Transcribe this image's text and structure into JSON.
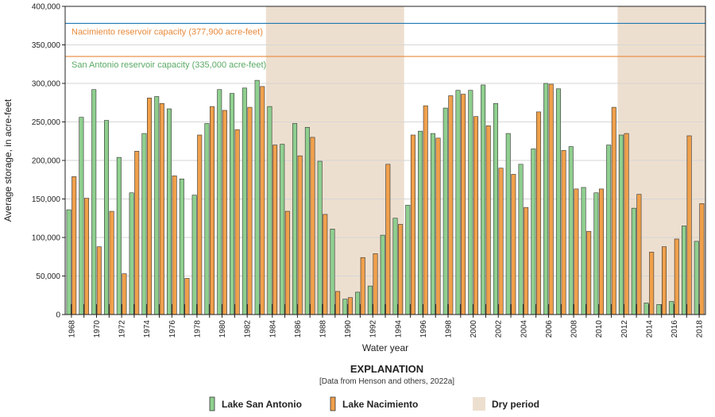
{
  "chart_data": {
    "type": "bar",
    "title": "",
    "xlabel": "Water year",
    "ylabel": "Average storage, in acre-feet",
    "ylim": [
      0,
      400000
    ],
    "y_ticks": [
      0,
      50000,
      100000,
      150000,
      200000,
      250000,
      300000,
      350000,
      400000
    ],
    "y_tick_labels": [
      "0",
      "50,000",
      "100,000",
      "150,000",
      "200,000",
      "250,000",
      "300,000",
      "350,000",
      "400,000"
    ],
    "grid": true,
    "categories": [
      1968,
      1969,
      1970,
      1971,
      1972,
      1973,
      1974,
      1975,
      1976,
      1977,
      1978,
      1979,
      1980,
      1981,
      1982,
      1983,
      1984,
      1985,
      1986,
      1987,
      1988,
      1989,
      1990,
      1991,
      1992,
      1993,
      1994,
      1995,
      1996,
      1997,
      1998,
      1999,
      2000,
      2001,
      2002,
      2003,
      2004,
      2005,
      2006,
      2007,
      2008,
      2009,
      2010,
      2011,
      2012,
      2013,
      2014,
      2015,
      2016,
      2017,
      2018
    ],
    "x_tick_labels": [
      "1968",
      "1970",
      "1972",
      "1974",
      "1976",
      "1978",
      "1980",
      "1982",
      "1984",
      "1986",
      "1988",
      "1990",
      "1992",
      "1994",
      "1996",
      "1998",
      "2000",
      "2002",
      "2004",
      "2006",
      "2008",
      "2010",
      "2012",
      "2014",
      "2016",
      "2018"
    ],
    "series": [
      {
        "name": "Lake San Antonio",
        "color": "#8fcf8f",
        "values": [
          136000,
          256000,
          292000,
          252000,
          204000,
          158000,
          235000,
          283000,
          267000,
          176000,
          155000,
          248000,
          292000,
          287000,
          294000,
          304000,
          270000,
          221000,
          248000,
          243000,
          199000,
          111000,
          20000,
          29000,
          37000,
          103000,
          125000,
          142000,
          238000,
          235000,
          268000,
          291000,
          291000,
          298000,
          274000,
          235000,
          195000,
          215000,
          300000,
          293000,
          218000,
          165000,
          158000,
          220000,
          233000,
          138000,
          15000,
          13000,
          17000,
          115000,
          95000
        ]
      },
      {
        "name": "Lake Nacimiento",
        "color": "#f0a04b",
        "values": [
          179000,
          151000,
          88000,
          134000,
          53000,
          212000,
          281000,
          274000,
          180000,
          47000,
          233000,
          270000,
          265000,
          240000,
          269000,
          296000,
          220000,
          134000,
          206000,
          230000,
          130000,
          30000,
          22000,
          74000,
          79000,
          195000,
          117000,
          233000,
          271000,
          229000,
          284000,
          286000,
          257000,
          245000,
          190000,
          182000,
          139000,
          263000,
          299000,
          213000,
          163000,
          108000,
          163000,
          269000,
          235000,
          156000,
          81000,
          88000,
          98000,
          232000,
          144000
        ]
      }
    ],
    "reference_lines": [
      {
        "label": "Nacimiento reservoir capacity (377,900 acre-feet)",
        "value": 377900,
        "color": "#1f78b4",
        "text_color": "#e8893a"
      },
      {
        "label": "San Antonio reservoir capacity (335,000 acre-feet)",
        "value": 335000,
        "color": "#e8893a",
        "text_color": "#5aaa64"
      }
    ],
    "dry_periods": [
      {
        "start": 1983.5,
        "end": 1994.5
      },
      {
        "start": 2011.5,
        "end": 2018.5
      }
    ],
    "legend": {
      "title": "EXPLANATION",
      "subtitle": "[Data from Henson and others, 2022a]",
      "placement": "bottom",
      "entries": [
        {
          "label": "Lake San Antonio",
          "color": "#8fcf8f"
        },
        {
          "label": "Lake Nacimiento",
          "color": "#f0a04b"
        },
        {
          "label": "Dry period",
          "color": "#eddfcf"
        }
      ]
    }
  }
}
